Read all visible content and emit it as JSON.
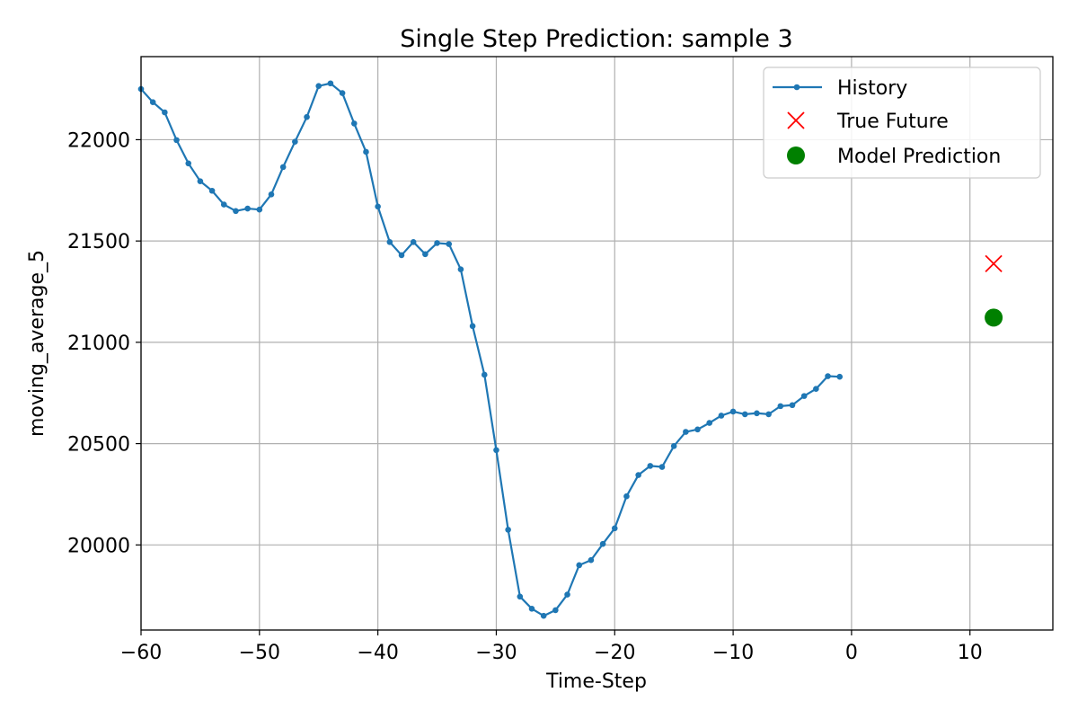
{
  "chart_data": {
    "type": "line",
    "title": "Single Step Prediction: sample 3",
    "xlabel": "Time-Step",
    "ylabel": "moving_average_5",
    "xlim": [
      -60,
      17
    ],
    "ylim": [
      19580,
      22410
    ],
    "xticks": [
      -60,
      -50,
      -40,
      -30,
      -20,
      -10,
      0,
      10
    ],
    "xtick_labels": [
      "−60",
      "−50",
      "−40",
      "−30",
      "−20",
      "−10",
      "0",
      "10"
    ],
    "yticks": [
      20000,
      20500,
      21000,
      21500,
      22000
    ],
    "ytick_labels": [
      "20000",
      "20500",
      "21000",
      "21500",
      "22000"
    ],
    "grid": true,
    "legend_position": "top-right",
    "series": [
      {
        "name": "History",
        "kind": "line-with-markers",
        "color": "#1f77b4",
        "x": [
          -60,
          -59,
          -58,
          -57,
          -56,
          -55,
          -54,
          -53,
          -52,
          -51,
          -50,
          -49,
          -48,
          -47,
          -46,
          -45,
          -44,
          -43,
          -42,
          -41,
          -40,
          -39,
          -38,
          -37,
          -36,
          -35,
          -34,
          -33,
          -32,
          -31,
          -30,
          -29,
          -28,
          -27,
          -26,
          -25,
          -24,
          -23,
          -22,
          -21,
          -20,
          -19,
          -18,
          -17,
          -16,
          -15,
          -14,
          -13,
          -12,
          -11,
          -10,
          -9,
          -8,
          -7,
          -6,
          -5,
          -4,
          -3,
          -2,
          -1
        ],
        "y": [
          22250,
          22185,
          22135,
          21998,
          21883,
          21795,
          21748,
          21680,
          21648,
          21660,
          21655,
          21730,
          21865,
          21990,
          22112,
          22265,
          22278,
          22230,
          22080,
          21940,
          21670,
          21495,
          21430,
          21495,
          21435,
          21490,
          21485,
          21360,
          21080,
          20840,
          20468,
          20075,
          19745,
          19685,
          19650,
          19678,
          19755,
          19900,
          19925,
          20005,
          20082,
          20240,
          20345,
          20390,
          20385,
          20488,
          20558,
          20570,
          20602,
          20638,
          20658,
          20645,
          20650,
          20645,
          20685,
          20690,
          20735,
          20770,
          20833,
          20830
        ]
      },
      {
        "name": "True Future",
        "kind": "x-marker",
        "color": "#ff0000",
        "x": [
          12
        ],
        "y": [
          21388
        ]
      },
      {
        "name": "Model Prediction",
        "kind": "dot-marker",
        "color": "#008000",
        "x": [
          12
        ],
        "y": [
          21122
        ]
      }
    ]
  }
}
